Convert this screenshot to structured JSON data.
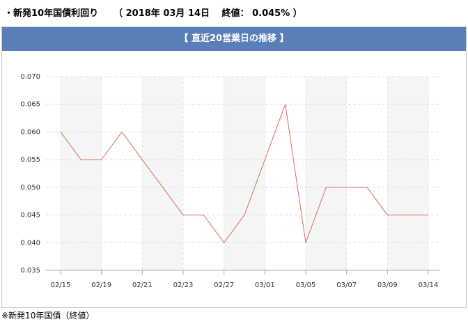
{
  "header": {
    "title": "・新発10年国債利回り",
    "info": "（ 2018年 03月 14日　 終値： 0.045% ）"
  },
  "footnote": "※新発10年国債（終値）",
  "chart_data": {
    "type": "line",
    "title": "【 直近20営業日の推移 】",
    "categories": [
      "02/15",
      null,
      "02/19",
      null,
      "02/21",
      null,
      "02/23",
      null,
      "02/27",
      null,
      "03/01",
      null,
      "03/05",
      null,
      "03/07",
      null,
      "03/09",
      null,
      "03/14"
    ],
    "series": [
      {
        "color": "#d9695f",
        "values": [
          0.06,
          0.055,
          0.055,
          0.06,
          0.055,
          0.05,
          0.045,
          0.045,
          0.04,
          0.045,
          0.055,
          0.065,
          0.04,
          0.05,
          0.05,
          0.05,
          0.045,
          0.045,
          0.045
        ]
      }
    ],
    "ylim": [
      0.035,
      0.07
    ],
    "yticks": [
      0.035,
      {
        "value": 0.04,
        "label": "0.040"
      },
      0.045,
      {
        "value": 0.05,
        "label": "0.050"
      },
      0.055,
      {
        "value": 0.06,
        "label": "0.060"
      },
      0.065,
      {
        "value": 0.07,
        "label": "0.070"
      }
    ],
    "grid": true
  }
}
